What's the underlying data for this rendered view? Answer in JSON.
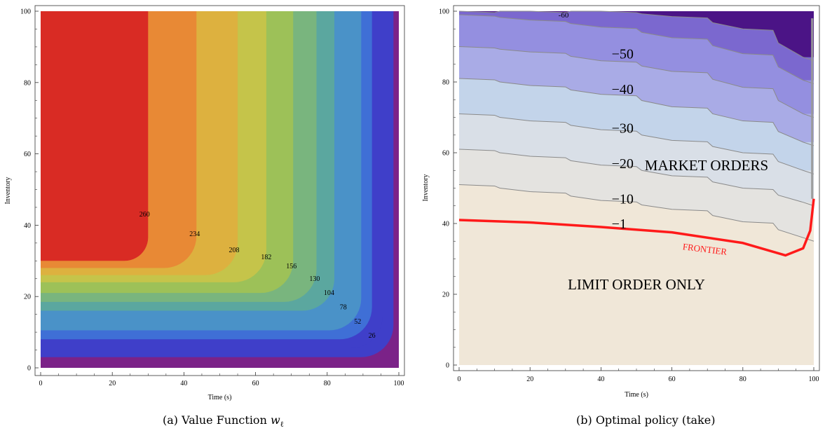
{
  "chart_data": [
    {
      "type": "heatmap",
      "title": "",
      "xlabel": "Time (s)",
      "ylabel": "Inventory",
      "xlim": [
        0,
        100
      ],
      "ylim": [
        0,
        100
      ],
      "xticks": [
        "0",
        "20",
        "40",
        "60",
        "80",
        "100"
      ],
      "yticks": [
        "0",
        "20",
        "40",
        "60",
        "80",
        "100"
      ],
      "grid": false,
      "contour_levels": [
        26,
        52,
        78,
        104,
        130,
        156,
        182,
        208,
        234,
        260
      ],
      "contour_labels": [
        {
          "text": "260",
          "x": 29,
          "y": 43
        },
        {
          "text": "234",
          "x": 43,
          "y": 37.5
        },
        {
          "text": "208",
          "x": 54,
          "y": 33
        },
        {
          "text": "182",
          "x": 63,
          "y": 31
        },
        {
          "text": "156",
          "x": 70,
          "y": 28.5
        },
        {
          "text": "130",
          "x": 76.5,
          "y": 25
        },
        {
          "text": "104",
          "x": 80.5,
          "y": 21
        },
        {
          "text": "78",
          "x": 84.5,
          "y": 17
        },
        {
          "text": "52",
          "x": 88.5,
          "y": 13
        },
        {
          "text": "26",
          "x": 92.5,
          "y": 9
        }
      ],
      "region_colors": [
        "#7b2288",
        "#3f3fc9",
        "#3f6fd6",
        "#4a92c8",
        "#5ba79f",
        "#79b57e",
        "#9dc158",
        "#c5c44a",
        "#ddb13f",
        "#e88935",
        "#d92b24"
      ],
      "caption_prefix": "(a) Value Function ",
      "caption_symbol": "w",
      "caption_sub": "ℓ"
    },
    {
      "type": "heatmap",
      "title": "",
      "xlabel": "Time (s)",
      "ylabel": "Inventory",
      "xlim": [
        0,
        100
      ],
      "ylim": [
        0,
        100
      ],
      "xticks": [
        "0",
        "20",
        "40",
        "60",
        "80",
        "100"
      ],
      "yticks": [
        "0",
        "20",
        "40",
        "60",
        "80",
        "100"
      ],
      "grid": false,
      "contour_labels": [
        {
          "text": "-60",
          "x": 28,
          "y": 99
        },
        {
          "text": "−50",
          "x": 43,
          "y": 88
        },
        {
          "text": "−40",
          "x": 43,
          "y": 78
        },
        {
          "text": "−30",
          "x": 43,
          "y": 67
        },
        {
          "text": "−20",
          "x": 43,
          "y": 57
        },
        {
          "text": "−10",
          "x": 43,
          "y": 47
        },
        {
          "text": "−1",
          "x": 43,
          "y": 40
        }
      ],
      "frontier": {
        "label": "FRONTIER",
        "x": [
          0,
          20,
          40,
          60,
          80,
          92,
          97,
          99,
          100
        ],
        "y": [
          41,
          40.3,
          39,
          37.5,
          34.5,
          31,
          33,
          38,
          47
        ]
      },
      "region_labels": [
        "MARKET ORDERS",
        "LIMIT ORDER ONLY"
      ],
      "region_colors": [
        "#4b1486",
        "#7b68cf",
        "#948fe0",
        "#a9abe6",
        "#c3d4ea",
        "#d9dfe7",
        "#e4e3e0",
        "#f0e7d8"
      ],
      "caption": "(b) Optimal policy (take)"
    }
  ]
}
